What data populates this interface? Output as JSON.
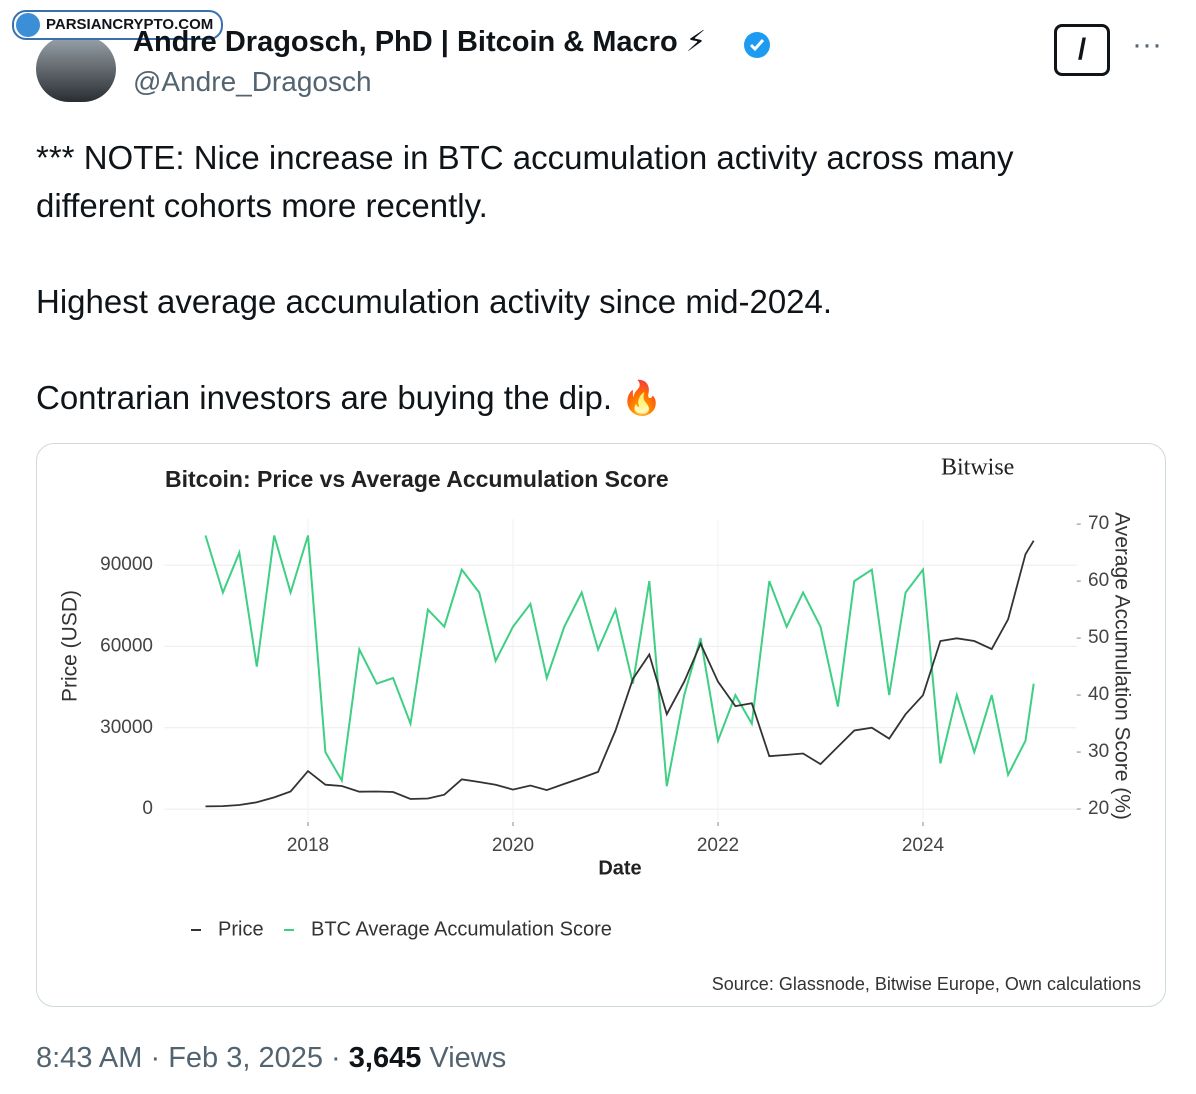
{
  "watermark": "PARSIANCRYPTO.COM",
  "tweet": {
    "author_name": "Andre Dragosch, PhD | Bitcoin & Macro ⚡",
    "handle": "@Andre_Dragosch",
    "text": [
      "*** NOTE: Nice increase in BTC accumulation activity across many different cohorts more recently.",
      "Highest average accumulation activity since mid-2024.",
      "Contrarian investors are buying the dip. 🔥"
    ],
    "time": "8:43 AM",
    "date": "Feb 3, 2025",
    "views_count": "3,645",
    "views_label": "Views"
  },
  "chart_data": {
    "type": "line",
    "title": "Bitcoin: Price vs Average Accumulation Score",
    "brand": "Bitwise",
    "x_label": "Date",
    "y_label": "Price (USD)",
    "y2_label": "Average Accumulation Score (%)",
    "source": "Source: Glassnode, Bitwise Europe, Own calculations",
    "x": [
      2017.0,
      2017.17,
      2017.33,
      2017.5,
      2017.67,
      2017.83,
      2018.0,
      2018.17,
      2018.33,
      2018.5,
      2018.67,
      2018.83,
      2019.0,
      2019.17,
      2019.33,
      2019.5,
      2019.67,
      2019.83,
      2020.0,
      2020.17,
      2020.33,
      2020.5,
      2020.67,
      2020.83,
      2021.0,
      2021.17,
      2021.33,
      2021.5,
      2021.67,
      2021.83,
      2022.0,
      2022.17,
      2022.33,
      2022.5,
      2022.67,
      2022.83,
      2023.0,
      2023.17,
      2023.33,
      2023.5,
      2023.67,
      2023.83,
      2024.0,
      2024.17,
      2024.33,
      2024.5,
      2024.67,
      2024.83,
      2025.0,
      2025.08
    ],
    "xlim": [
      2016.6,
      2025.5
    ],
    "xticks": [
      2018,
      2020,
      2022,
      2024
    ],
    "ylim": [
      -4400,
      107000
    ],
    "yticks": [
      0,
      30000,
      60000,
      90000
    ],
    "y2lim": [
      17.9,
      70.9
    ],
    "y2ticks": [
      20,
      30,
      40,
      50,
      60,
      70
    ],
    "grid": true,
    "series": [
      {
        "name": "Price",
        "color": "#333333",
        "values": [
          1000,
          1100,
          1500,
          2500,
          4300,
          6500,
          14000,
          9000,
          8500,
          6400,
          6500,
          6300,
          3700,
          3900,
          5300,
          11000,
          10000,
          9000,
          7200,
          8700,
          7000,
          9300,
          11500,
          13700,
          29000,
          48000,
          57000,
          35000,
          47000,
          61000,
          47000,
          38000,
          39000,
          19500,
          20000,
          20500,
          16600,
          23000,
          29000,
          30000,
          26000,
          35000,
          42000,
          62000,
          63000,
          62000,
          59000,
          70000,
          94000,
          99000
        ]
      },
      {
        "name": "BTC Average Accumulation Score",
        "color": "#3ecf84",
        "axis": "y2",
        "values": [
          68,
          58,
          65,
          45,
          68,
          58,
          68,
          30,
          25,
          48,
          42,
          43,
          35,
          55,
          52,
          62,
          58,
          46,
          52,
          56,
          43,
          52,
          58,
          48,
          55,
          42,
          60,
          24,
          40,
          50,
          32,
          40,
          35,
          60,
          52,
          58,
          52,
          38,
          60,
          62,
          40,
          58,
          62,
          28,
          40,
          30,
          40,
          26,
          32,
          42
        ]
      }
    ]
  }
}
